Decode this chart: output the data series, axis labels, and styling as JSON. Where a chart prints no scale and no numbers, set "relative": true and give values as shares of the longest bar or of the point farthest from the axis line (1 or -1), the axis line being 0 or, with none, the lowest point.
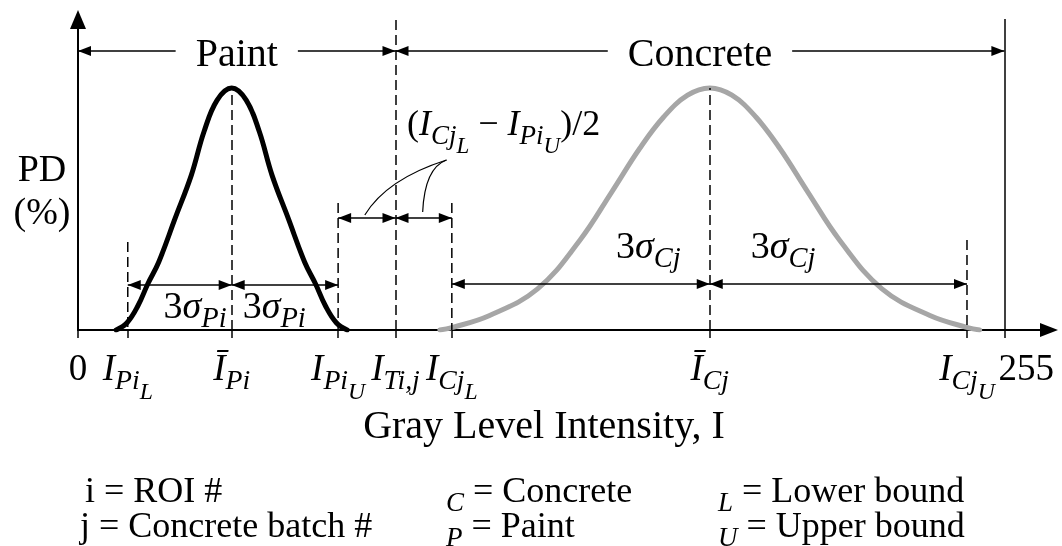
{
  "chart_data": {
    "type": "line",
    "relative": true,
    "xlabel": "Gray Level Intensity, I",
    "ylabel": "PD (%)",
    "xlim": [
      0,
      267
    ],
    "xticks": [
      0,
      {
        "value": 13.7,
        "label": "I$_{Pi}$$_{L}$"
      },
      {
        "value": 42.3,
        "label": "Ī$_{Pi}$"
      },
      {
        "value": 71.6,
        "label": "I$_{Pi}$$_{U}$"
      },
      {
        "value": 87.4,
        "label": "I$_{Ti,j}$"
      },
      {
        "value": 102.9,
        "label": "I$_{Cj}$$_{L}$"
      },
      {
        "value": 173.9,
        "label": "Ī$_{Cj}$"
      },
      {
        "value": 244.7,
        "label": "I$_{Cj}$$_{U}$"
      },
      255
    ],
    "series": [
      {
        "color": "#000000",
        "x": [
          10.5,
          13.5,
          16.5,
          19.2,
          22.2,
          26.7,
          31.2,
          34.7,
          38.3,
          42.3,
          46.3,
          49.9,
          53.4,
          57.9,
          62.4,
          65.4,
          68.1,
          71.1,
          74.1
        ],
        "values": [
          0,
          0.03,
          0.1,
          0.19,
          0.28,
          0.46,
          0.64,
          0.82,
          0.95,
          1,
          0.95,
          0.82,
          0.64,
          0.46,
          0.28,
          0.19,
          0.1,
          0.03,
          0
        ]
      },
      {
        "color": "#a6a6a6",
        "x": [
          99.6,
          102.9,
          113.3,
          126.5,
          138.1,
          146.9,
          154.6,
          161.2,
          167.8,
          173.9,
          180.0,
          186.6,
          193.2,
          200.9,
          209.7,
          221.3,
          234.5,
          244.9,
          248.2
        ],
        "values": [
          0,
          0.01,
          0.06,
          0.17,
          0.37,
          0.57,
          0.75,
          0.88,
          0.97,
          1,
          0.97,
          0.88,
          0.75,
          0.57,
          0.37,
          0.17,
          0.06,
          0.01,
          0
        ]
      }
    ],
    "ref_lines": [
      {
        "axis": "x",
        "value": 42.3,
        "line_style": "dashed"
      },
      {
        "axis": "x",
        "value": 87.4,
        "line_style": "dashed"
      },
      {
        "axis": "x",
        "value": 173.9,
        "line_style": "dashed"
      },
      {
        "axis": "x",
        "value": 255,
        "line_style": "solid"
      }
    ],
    "annotations": [
      "Paint",
      "Concrete",
      "3σ$_{Pi}$",
      "3σ$_{Pi}$",
      "(I$_{Cj}$$_{L}$ − I$_{Pi}$$_{U}$)/2",
      "3σ$_{Cj}$",
      "3σ$_{Cj}$",
      "i = ROI #",
      "$_{C}$ = Concrete",
      "$_{L}$ = Lower bound",
      "j = Concrete batch #",
      "$_{P}$ = Paint",
      "$_{U}$ = Upper bound"
    ]
  }
}
